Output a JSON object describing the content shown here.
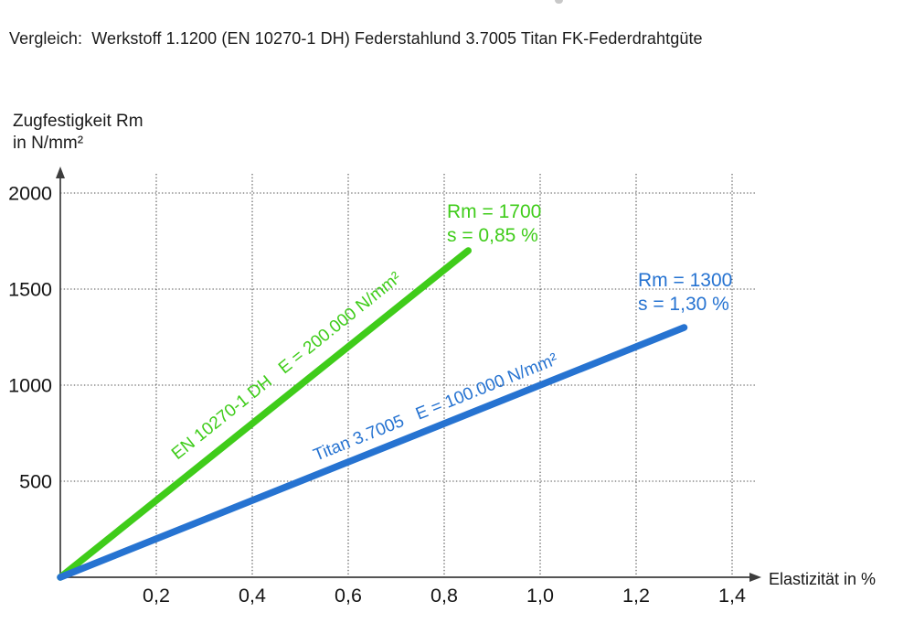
{
  "title": "Vergleich:  Werkstoff 1.1200 (EN 10270-1 DH) Federstahlund 3.7005 Titan FK-Federdrahtgüte",
  "colors": {
    "steel_green": "#3fcc1a",
    "titan_blue": "#2673d1",
    "axis": "#3d3d3d",
    "grid": "#4f4f4f",
    "text": "#1a1a1a"
  },
  "chart_data": {
    "type": "line",
    "title": "Vergleich:  Werkstoff 1.1200 (EN 10270-1 DH) Federstahlund 3.7005 Titan FK-Federdrahtgüte",
    "xlabel": "Elastizität in %",
    "ylabel_lines": [
      "Zugfestigkeit Rm",
      "in N/mm²"
    ],
    "xlim": [
      0,
      1.4
    ],
    "ylim": [
      0,
      2000
    ],
    "grid": "dotted",
    "legend_position": "inline-along-lines",
    "x_ticks": {
      "values": [
        0.2,
        0.4,
        0.6,
        0.8,
        1.0,
        1.2,
        1.4
      ],
      "labels": [
        "0,2",
        "0,4",
        "0,6",
        "0,8",
        "1,0",
        "1,2",
        "1,4"
      ]
    },
    "y_ticks": {
      "values": [
        500,
        1000,
        1500,
        2000
      ],
      "labels": [
        "500",
        "1000",
        "1500",
        "2000"
      ]
    },
    "series": [
      {
        "name": "EN 10270-1 DH",
        "inline_label": "EN 10270-1 DH   E = 200.000 N/mm²",
        "color": "#3fcc1a",
        "x": [
          0,
          0.85
        ],
        "y": [
          0,
          1700
        ],
        "annotation_lines": [
          "Rm = 1700",
          "s = 0,85 %"
        ]
      },
      {
        "name": "Titan 3.7005",
        "inline_label": "Titan 3.7005   E = 100.000 N/mm²",
        "color": "#2673d1",
        "x": [
          0,
          1.3
        ],
        "y": [
          0,
          1300
        ],
        "annotation_lines": [
          "Rm = 1300",
          "s = 1,30 %"
        ]
      }
    ]
  }
}
